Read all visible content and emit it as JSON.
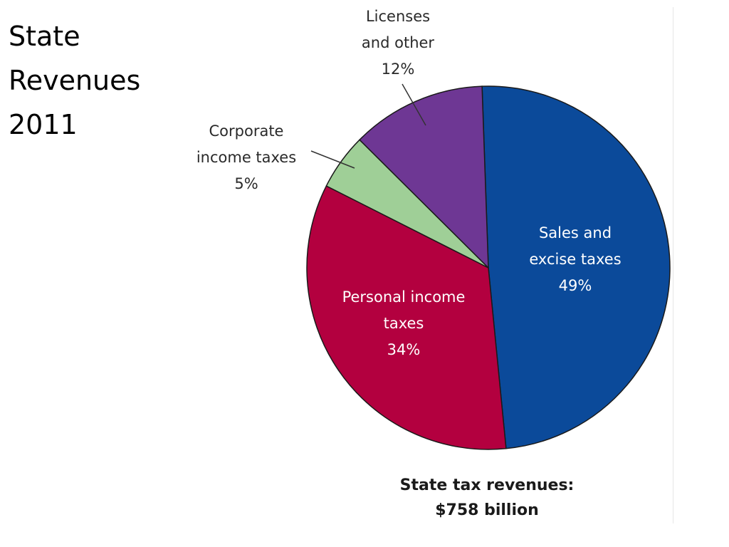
{
  "slide": {
    "title_lines": [
      "State",
      "Revenues",
      "2011"
    ]
  },
  "chart_data": {
    "type": "pie",
    "slices": [
      {
        "lines": [
          "Sales and",
          "excise taxes",
          "49%"
        ],
        "value": 49,
        "color": "#0b4a9a"
      },
      {
        "lines": [
          "Personal income",
          "taxes",
          "34%"
        ],
        "value": 34,
        "color": "#b3003f"
      },
      {
        "lines": [
          "Corporate",
          "income taxes",
          "5%"
        ],
        "value": 5,
        "color": "#9fcf97"
      },
      {
        "lines": [
          "Licenses",
          "and other",
          "12%"
        ],
        "value": 12,
        "color": "#6e3794"
      }
    ],
    "footer": [
      "State tax revenues:",
      "$758 billion"
    ]
  }
}
